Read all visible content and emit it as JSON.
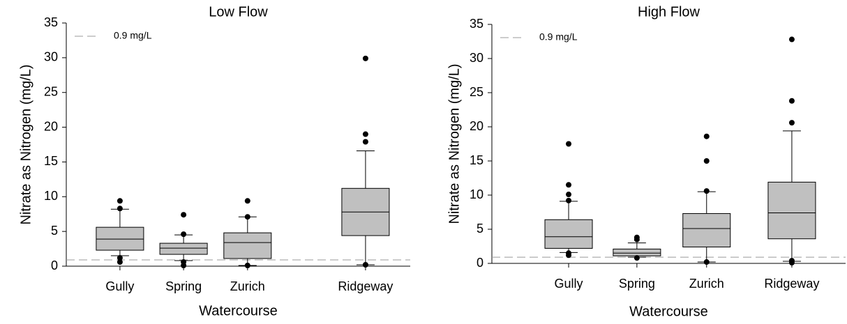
{
  "chart_data": [
    {
      "type": "box",
      "title": "Low Flow",
      "xlabel": "Watercourse",
      "ylabel": "Nitrate as Nitrogen (mg/L)",
      "categories": [
        "Gully",
        "Spring",
        "Zurich",
        "Ridgeway"
      ],
      "boxes": [
        {
          "whisker_low": 1.5,
          "q1": 2.3,
          "median": 3.9,
          "q3": 5.6,
          "whisker_high": 8.2,
          "outliers": [
            0.6,
            1.2,
            8.3,
            9.4
          ]
        },
        {
          "whisker_low": 0.8,
          "q1": 1.7,
          "median": 2.6,
          "q3": 3.3,
          "whisker_high": 4.5,
          "outliers": [
            0.1,
            0.6,
            4.6,
            7.4
          ]
        },
        {
          "whisker_low": 0.1,
          "q1": 1.1,
          "median": 3.4,
          "q3": 4.8,
          "whisker_high": 7.1,
          "outliers": [
            0.1,
            7.1,
            9.4
          ]
        },
        {
          "whisker_low": 0.2,
          "q1": 4.4,
          "median": 7.8,
          "q3": 11.2,
          "whisker_high": 16.6,
          "outliers": [
            0.2,
            17.9,
            19.0,
            29.9
          ]
        }
      ],
      "color": "#c0c0c0",
      "ylim": [
        0,
        35
      ],
      "yticks": [
        0,
        5,
        10,
        15,
        20,
        25,
        30,
        35
      ],
      "reference_line": {
        "value": 0.9,
        "label": "0.9 mg/L"
      }
    },
    {
      "type": "box",
      "title": "High Flow",
      "xlabel": "Watercourse",
      "ylabel": "Nitrate as Nitrogen (mg/L)",
      "categories": [
        "Gully",
        "Spring",
        "Zurich",
        "Ridgeway"
      ],
      "boxes": [
        {
          "whisker_low": 1.6,
          "q1": 2.2,
          "median": 3.9,
          "q3": 6.4,
          "whisker_high": 9.1,
          "outliers": [
            1.2,
            1.5,
            9.2,
            10.1,
            11.5,
            17.5
          ]
        },
        {
          "whisker_low": 0.9,
          "q1": 1.1,
          "median": 1.5,
          "q3": 2.1,
          "whisker_high": 3.0,
          "outliers": [
            0.8,
            3.5,
            3.8
          ]
        },
        {
          "whisker_low": 0.2,
          "q1": 2.4,
          "median": 5.1,
          "q3": 7.3,
          "whisker_high": 10.5,
          "outliers": [
            0.2,
            10.6,
            15.0,
            18.6
          ]
        },
        {
          "whisker_low": 0.3,
          "q1": 3.6,
          "median": 7.4,
          "q3": 11.9,
          "whisker_high": 19.4,
          "outliers": [
            0.1,
            0.4,
            20.6,
            23.8,
            32.8
          ]
        }
      ],
      "color": "#c0c0c0",
      "ylim": [
        0,
        35
      ],
      "yticks": [
        0,
        5,
        10,
        15,
        20,
        25,
        30,
        35
      ],
      "reference_line": {
        "value": 0.9,
        "label": "0.9 mg/L"
      }
    }
  ]
}
